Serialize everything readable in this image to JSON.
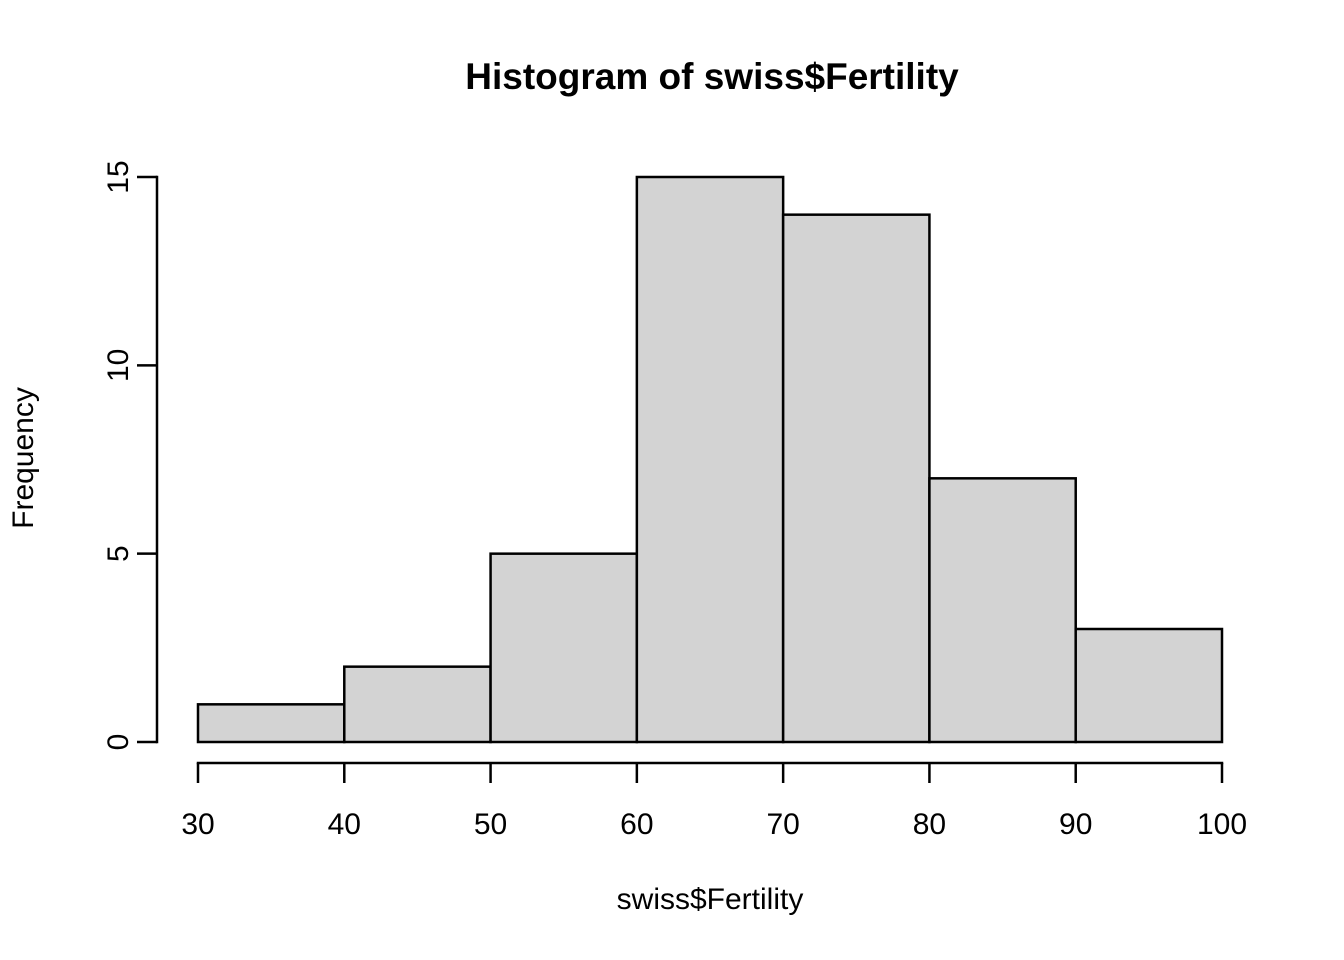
{
  "chart_data": {
    "type": "bar",
    "subtype": "histogram",
    "title": "Histogram of swiss$Fertility",
    "xlabel": "swiss$Fertility",
    "ylabel": "Frequency",
    "bin_start": 30,
    "bin_width": 10,
    "categories": [
      "30-40",
      "40-50",
      "50-60",
      "60-70",
      "70-80",
      "80-90",
      "90-100"
    ],
    "values": [
      1,
      2,
      5,
      15,
      14,
      7,
      3
    ],
    "x_ticks": [
      30,
      40,
      50,
      60,
      70,
      80,
      90,
      100
    ],
    "y_ticks": [
      0,
      5,
      10,
      15
    ],
    "xlim": [
      30,
      100
    ],
    "ylim": [
      0,
      15
    ],
    "grid": "off",
    "legend": "none",
    "bar_fill": "#d3d3d3",
    "bar_stroke": "#000000",
    "axis_color": "#000000",
    "background": "#ffffff"
  }
}
